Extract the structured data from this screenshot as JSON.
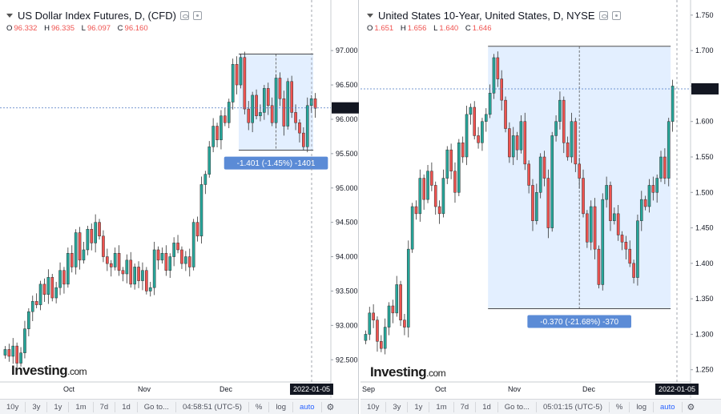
{
  "colors": {
    "up": "#26a69a",
    "down": "#ef5350",
    "range_fill": "#e3efff",
    "range_stroke": "#000000",
    "crosshair": "#4a78c2",
    "label_bg": "#5b8bd6",
    "price_tag": "#131722"
  },
  "icons": [
    "eye-icon",
    "settings-icon",
    "collapse-icon",
    "gear-icon"
  ],
  "logo": {
    "brand": "Investing",
    "suffix": ".com"
  },
  "bottom_buttons": [
    "10y",
    "3y",
    "1y",
    "1m",
    "7d",
    "1d",
    "Go to...",
    "%",
    "log",
    "auto"
  ],
  "left": {
    "title": "US Dollar Index Futures, D, (CFD)",
    "ohlc": [
      {
        "k": "O",
        "v": "96.332"
      },
      {
        "k": "H",
        "v": "96.335"
      },
      {
        "k": "L",
        "v": "96.097"
      },
      {
        "k": "C",
        "v": "96.160"
      }
    ],
    "time": "04:58:51 (UTC-5)",
    "last_price_label": "96.166",
    "measure_label": "-1.401 (-1.45%) -1401",
    "date_label": "2022-01-05"
  },
  "right": {
    "title": "United States 10-Year, United States, D, NYSE",
    "ohlc": [
      {
        "k": "O",
        "v": "1.651"
      },
      {
        "k": "H",
        "v": "1.656"
      },
      {
        "k": "L",
        "v": "1.640"
      },
      {
        "k": "C",
        "v": "1.646"
      }
    ],
    "time": "05:01:15 (UTC-5)",
    "last_price_label": "1.646",
    "measure_label": "-0.370 (-21.68%) -370",
    "date_label": "2022-01-05"
  },
  "chart_data": [
    {
      "type": "candlestick",
      "title": "US Dollar Index Futures, D, (CFD)",
      "y_ticks": [
        "97.000",
        "96.500",
        "96.000",
        "95.500",
        "95.000",
        "94.500",
        "94.000",
        "93.500",
        "93.000",
        "92.500"
      ],
      "x_ticks": [
        "Oct",
        "Nov",
        "Dec"
      ],
      "ylim": [
        92.2,
        97.2
      ],
      "last_price": 96.166,
      "range_box": {
        "from_index": 60,
        "to_index": 78,
        "high": 96.95,
        "low": 95.55
      },
      "closes": [
        92.65,
        92.55,
        92.7,
        92.45,
        92.6,
        92.95,
        93.2,
        93.35,
        93.3,
        93.6,
        93.45,
        93.7,
        93.4,
        93.55,
        93.8,
        93.6,
        94.05,
        93.85,
        94.35,
        93.95,
        94.1,
        94.4,
        94.2,
        94.5,
        94.3,
        94.0,
        93.9,
        93.85,
        94.05,
        93.8,
        93.75,
        93.95,
        93.6,
        93.85,
        93.65,
        93.8,
        93.5,
        93.55,
        94.1,
        93.95,
        94.05,
        93.8,
        94.0,
        94.2,
        94.1,
        93.9,
        94.0,
        93.85,
        94.5,
        94.3,
        95.05,
        95.2,
        95.6,
        95.9,
        95.7,
        96.05,
        95.95,
        96.25,
        96.8,
        96.5,
        96.9,
        96.15,
        95.95,
        96.35,
        96.05,
        96.1,
        96.45,
        96.2,
        95.95,
        96.6,
        96.3,
        95.9,
        96.55,
        96.1,
        95.95,
        95.8,
        95.6,
        96.2,
        96.3,
        96.16
      ],
      "candle_count": 80
    },
    {
      "type": "candlestick",
      "title": "United States 10-Year, United States, D, NYSE",
      "y_ticks": [
        "1.750",
        "1.700",
        "1.650",
        "1.600",
        "1.550",
        "1.500",
        "1.450",
        "1.400",
        "1.350",
        "1.300",
        "1.250"
      ],
      "x_ticks": [
        "Sep",
        "Oct",
        "Nov",
        "Dec"
      ],
      "ylim": [
        1.235,
        1.76
      ],
      "last_price": 1.646,
      "range_box": {
        "from_index": 32,
        "to_index": 78,
        "high": 1.706,
        "low": 1.336
      },
      "closes": [
        1.3,
        1.33,
        1.32,
        1.29,
        1.28,
        1.31,
        1.34,
        1.33,
        1.37,
        1.32,
        1.31,
        1.42,
        1.48,
        1.47,
        1.52,
        1.49,
        1.53,
        1.51,
        1.48,
        1.47,
        1.52,
        1.56,
        1.53,
        1.5,
        1.57,
        1.55,
        1.61,
        1.62,
        1.58,
        1.57,
        1.6,
        1.61,
        1.64,
        1.69,
        1.66,
        1.63,
        1.59,
        1.55,
        1.58,
        1.56,
        1.6,
        1.54,
        1.51,
        1.46,
        1.5,
        1.55,
        1.52,
        1.45,
        1.58,
        1.6,
        1.63,
        1.57,
        1.55,
        1.6,
        1.54,
        1.52,
        1.47,
        1.43,
        1.48,
        1.42,
        1.37,
        1.49,
        1.51,
        1.46,
        1.47,
        1.44,
        1.43,
        1.42,
        1.4,
        1.38,
        1.46,
        1.49,
        1.48,
        1.51,
        1.5,
        1.52,
        1.55,
        1.52,
        1.6,
        1.65
      ],
      "candle_count": 80
    }
  ]
}
